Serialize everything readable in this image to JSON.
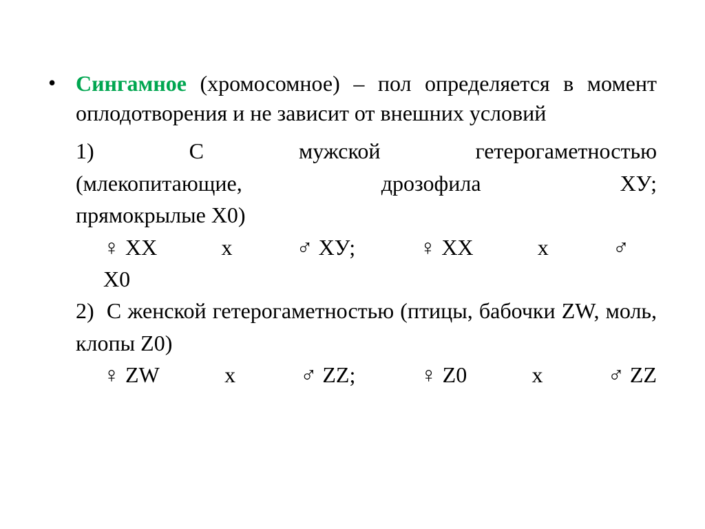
{
  "colors": {
    "highlight": "#00a650",
    "text": "#000000",
    "background": "#ffffff"
  },
  "typography": {
    "font_family": "Times New Roman",
    "body_fontsize": 32,
    "line_height": 1.4
  },
  "bullet": {
    "symbol": "•",
    "highlight_term": "Сингамное",
    "rest_line1": " (хромосомное) – пол определяется в момент оплодотворения и не зависит от внешних условий"
  },
  "item1": {
    "number": "1)",
    "text_line1": "С мужской гетерогаметностью (млекопитающие, дрозофила ХУ; прямокрылые Х0)",
    "cross": {
      "female_symbol": "♀",
      "male_symbol": "♂",
      "pair1_f": "ХХ",
      "mult": "х",
      "pair1_m": "ХУ;",
      "pair2_f": "ХХ",
      "pair2_m": "Х0"
    }
  },
  "item2": {
    "number": "2)",
    "text": "С женской гетерогаметностью (птицы, бабочки ZW,  моль, клопы Z0)",
    "cross": {
      "female_symbol": "♀",
      "male_symbol": "♂",
      "pair1_f": "ZW",
      "mult": "х",
      "pair1_m": "ZZ;",
      "pair2_f": "Z0",
      "pair2_m": "ZZ"
    }
  }
}
